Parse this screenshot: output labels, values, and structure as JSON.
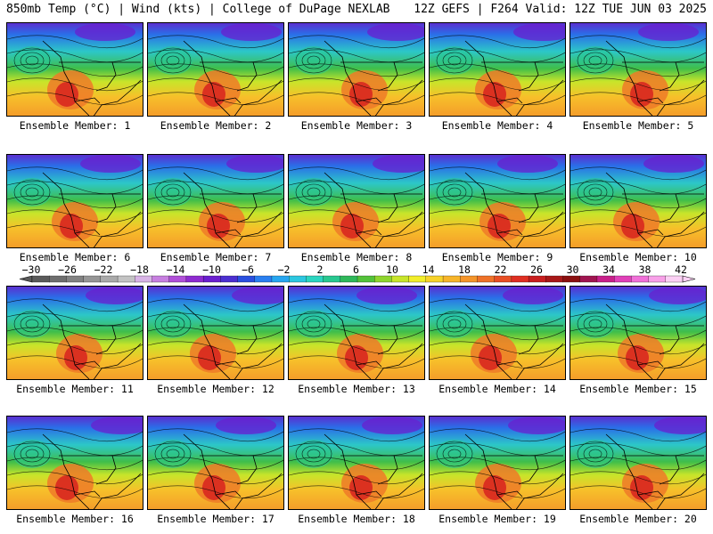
{
  "header": {
    "left": "850mb Temp (°C) | Wind (kts) | College of DuPage NEXLAB",
    "right": "12Z GEFS | F264 Valid: 12Z TUE JUN 03 2025"
  },
  "panels": [
    {
      "caption": "Ensemble Member: 1"
    },
    {
      "caption": "Ensemble Member: 2"
    },
    {
      "caption": "Ensemble Member: 3"
    },
    {
      "caption": "Ensemble Member: 4"
    },
    {
      "caption": "Ensemble Member: 5"
    },
    {
      "caption": "Ensemble Member: 6"
    },
    {
      "caption": "Ensemble Member: 7"
    },
    {
      "caption": "Ensemble Member: 8"
    },
    {
      "caption": "Ensemble Member: 9"
    },
    {
      "caption": "Ensemble Member: 10"
    },
    {
      "caption": "Ensemble Member: 11"
    },
    {
      "caption": "Ensemble Member: 12"
    },
    {
      "caption": "Ensemble Member: 13"
    },
    {
      "caption": "Ensemble Member: 14"
    },
    {
      "caption": "Ensemble Member: 15"
    },
    {
      "caption": "Ensemble Member: 16"
    },
    {
      "caption": "Ensemble Member: 17"
    },
    {
      "caption": "Ensemble Member: 18"
    },
    {
      "caption": "Ensemble Member: 19"
    },
    {
      "caption": "Ensemble Member: 20"
    }
  ],
  "colorbar": {
    "ticks": [
      "−30",
      "−26",
      "−22",
      "−18",
      "−14",
      "−10",
      "−6",
      "−2",
      "2",
      "6",
      "10",
      "14",
      "18",
      "22",
      "26",
      "30",
      "34",
      "38",
      "42"
    ],
    "colors": [
      "#5a5a5a",
      "#6e6e6e",
      "#828282",
      "#969696",
      "#aaaaaa",
      "#c3c3c3",
      "#d8b4e6",
      "#c77fe0",
      "#b04fd8",
      "#8e2bd0",
      "#6a1fcf",
      "#4b2fd0",
      "#2a50e0",
      "#2a7ff0",
      "#27a6f0",
      "#2cc7e0",
      "#2bd5c0",
      "#28c890",
      "#2fb85a",
      "#53c23a",
      "#8fd52e",
      "#c8e52a",
      "#f2ee2a",
      "#f7d22a",
      "#f7b52a",
      "#f4952a",
      "#ef7228",
      "#e84f24",
      "#df2f22",
      "#c81e1e",
      "#a81818",
      "#8b1010",
      "#a01550",
      "#c8208a",
      "#e040b8",
      "#f070d8",
      "#f8a0e8",
      "#fbd0f4"
    ]
  }
}
